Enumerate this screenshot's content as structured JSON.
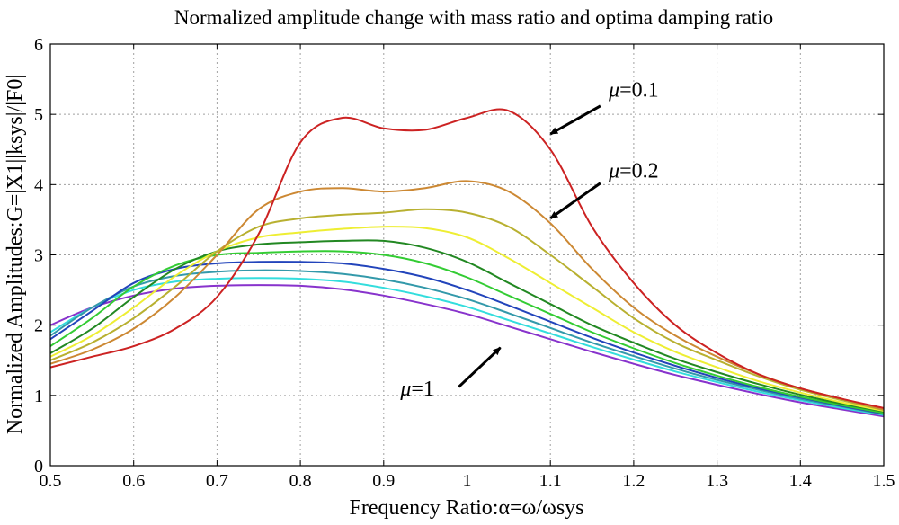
{
  "chart_data": {
    "type": "line",
    "title": "Normalized amplitude change with mass ratio and optima damping ratio",
    "xlabel": "Frequency Ratio:α=ω/ωsys",
    "ylabel": "Normalized Amplitudes:G=|X1||ksys|/|F0|",
    "xlim": [
      0.5,
      1.5
    ],
    "ylim": [
      0,
      6
    ],
    "xticks": [
      "0.5",
      "0.6",
      "0.7",
      "0.8",
      "0.9",
      "1",
      "1.1",
      "1.2",
      "1.3",
      "1.4",
      "1.5"
    ],
    "yticks": [
      "0",
      "1",
      "2",
      "3",
      "4",
      "5",
      "6"
    ],
    "grid": true,
    "x": [
      0.5,
      0.55,
      0.6,
      0.65,
      0.7,
      0.75,
      0.8,
      0.85,
      0.9,
      0.95,
      1.0,
      1.05,
      1.1,
      1.15,
      1.2,
      1.25,
      1.3,
      1.35,
      1.4,
      1.45,
      1.5
    ],
    "series": [
      {
        "color": "#cc2222",
        "values": [
          1.4,
          1.55,
          1.7,
          1.95,
          2.4,
          3.3,
          4.6,
          4.95,
          4.8,
          4.78,
          4.95,
          5.05,
          4.5,
          3.4,
          2.6,
          2.0,
          1.6,
          1.3,
          1.1,
          0.95,
          0.82
        ]
      },
      {
        "color": "#cc8833",
        "values": [
          1.45,
          1.65,
          1.95,
          2.4,
          3.0,
          3.65,
          3.9,
          3.95,
          3.9,
          3.95,
          4.05,
          3.9,
          3.45,
          2.8,
          2.25,
          1.85,
          1.55,
          1.3,
          1.1,
          0.95,
          0.8
        ]
      },
      {
        "color": "#b8b030",
        "values": [
          1.5,
          1.75,
          2.1,
          2.55,
          3.05,
          3.4,
          3.52,
          3.57,
          3.6,
          3.65,
          3.6,
          3.4,
          3.0,
          2.55,
          2.1,
          1.75,
          1.5,
          1.27,
          1.08,
          0.93,
          0.79
        ]
      },
      {
        "color": "#eeee33",
        "values": [
          1.55,
          1.85,
          2.25,
          2.7,
          3.05,
          3.25,
          3.32,
          3.37,
          3.4,
          3.38,
          3.25,
          2.95,
          2.6,
          2.25,
          1.9,
          1.62,
          1.4,
          1.2,
          1.04,
          0.9,
          0.78
        ]
      },
      {
        "color": "#228822",
        "values": [
          1.6,
          1.95,
          2.4,
          2.8,
          3.05,
          3.15,
          3.18,
          3.2,
          3.2,
          3.1,
          2.9,
          2.6,
          2.3,
          2.0,
          1.75,
          1.52,
          1.33,
          1.16,
          1.01,
          0.88,
          0.77
        ]
      },
      {
        "color": "#33cc33",
        "values": [
          1.7,
          2.1,
          2.55,
          2.85,
          3.0,
          3.03,
          3.05,
          3.05,
          3.0,
          2.88,
          2.68,
          2.42,
          2.16,
          1.9,
          1.67,
          1.46,
          1.28,
          1.12,
          0.98,
          0.86,
          0.75
        ]
      },
      {
        "color": "#2244bb",
        "values": [
          1.8,
          2.2,
          2.6,
          2.8,
          2.88,
          2.9,
          2.9,
          2.88,
          2.8,
          2.68,
          2.5,
          2.28,
          2.05,
          1.82,
          1.61,
          1.42,
          1.25,
          1.1,
          0.97,
          0.85,
          0.74
        ]
      },
      {
        "color": "#3399aa",
        "values": [
          1.85,
          2.25,
          2.55,
          2.7,
          2.76,
          2.78,
          2.77,
          2.73,
          2.65,
          2.53,
          2.37,
          2.17,
          1.96,
          1.75,
          1.56,
          1.38,
          1.22,
          1.08,
          0.95,
          0.84,
          0.73
        ]
      },
      {
        "color": "#33dddd",
        "values": [
          1.9,
          2.25,
          2.5,
          2.62,
          2.66,
          2.67,
          2.66,
          2.62,
          2.53,
          2.41,
          2.26,
          2.07,
          1.88,
          1.69,
          1.51,
          1.34,
          1.19,
          1.05,
          0.93,
          0.82,
          0.72
        ]
      },
      {
        "color": "#8833cc",
        "values": [
          2.0,
          2.25,
          2.42,
          2.52,
          2.56,
          2.57,
          2.56,
          2.51,
          2.42,
          2.3,
          2.16,
          1.98,
          1.8,
          1.62,
          1.45,
          1.29,
          1.15,
          1.02,
          0.9,
          0.8,
          0.7
        ]
      }
    ],
    "annotations": [
      {
        "text": "=0.1",
        "symbol": "μ",
        "label_x": 1.17,
        "label_y": 5.25,
        "arrow_from": [
          1.16,
          5.12
        ],
        "arrow_to": [
          1.1,
          4.72
        ]
      },
      {
        "text": "=0.2",
        "symbol": "μ",
        "label_x": 1.17,
        "label_y": 4.1,
        "arrow_from": [
          1.16,
          4.02
        ],
        "arrow_to": [
          1.1,
          3.52
        ]
      },
      {
        "text": "=1",
        "symbol": "μ",
        "label_x": 0.92,
        "label_y": 1.0,
        "arrow_from": [
          0.99,
          1.12
        ],
        "arrow_to": [
          1.04,
          1.68
        ]
      }
    ]
  }
}
